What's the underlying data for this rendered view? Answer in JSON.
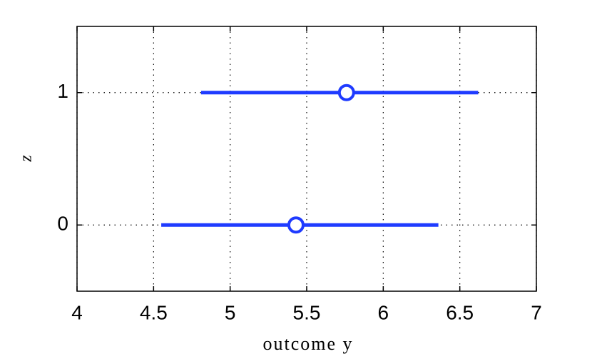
{
  "chart_data": {
    "type": "interval",
    "xlabel": "outcome y",
    "ylabel": "z",
    "xlim": [
      4,
      7
    ],
    "xticks": [
      4,
      4.5,
      5,
      5.5,
      6,
      6.5,
      7
    ],
    "ylim": [
      -0.5,
      1.5
    ],
    "yticks": [
      0,
      1
    ],
    "grid": true,
    "color": "#1f3bff",
    "y": [
      1,
      0
    ],
    "low": [
      4.81,
      4.55
    ],
    "center": [
      5.76,
      5.43
    ],
    "high": [
      6.62,
      6.36
    ]
  }
}
